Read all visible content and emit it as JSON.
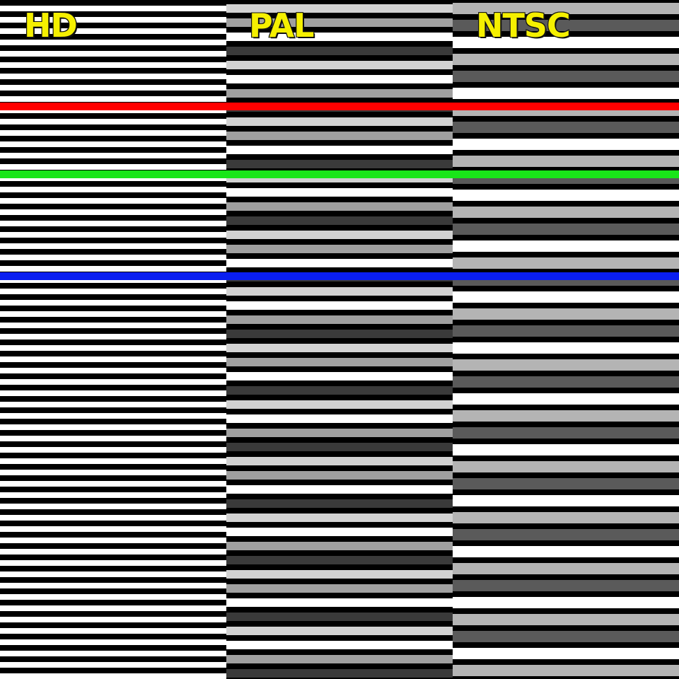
{
  "labels": {
    "hd": "HD",
    "pal": "PAL",
    "ntsc": "NTSC"
  },
  "colors": {
    "label_text": "#f5f000",
    "black": "#000000",
    "white": "#ffffff",
    "pal_light": "#d2d2d2",
    "pal_mid": "#a0a0a0",
    "pal_dark": "#3a3a3a",
    "ntsc_light": "#b4b4b4",
    "ntsc_dark": "#5a5a5a",
    "red_line": "#ff0000",
    "green_line": "#19e619",
    "blue_line": "#0a1ef0"
  },
  "marker_lines": [
    {
      "name": "red-scan-line",
      "color": "#ff0000"
    },
    {
      "name": "green-scan-line",
      "color": "#19e619"
    },
    {
      "name": "blue-scan-line",
      "color": "#0a1ef0"
    }
  ]
}
